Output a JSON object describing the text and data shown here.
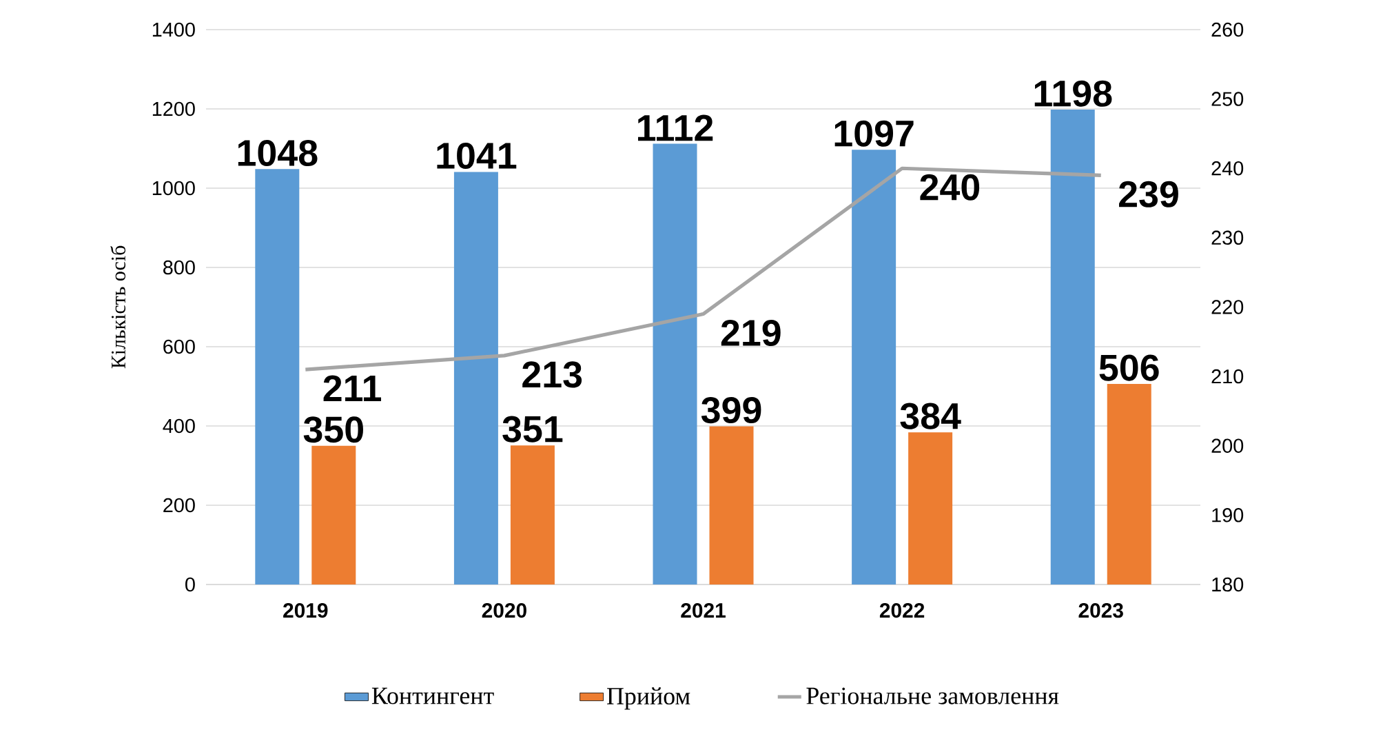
{
  "chart_data": {
    "type": "bar",
    "ylabel": "Кількість осіб",
    "categories": [
      "2019",
      "2020",
      "2021",
      "2022",
      "2023"
    ],
    "series": [
      {
        "name": "Контингент",
        "color": "#5b9bd5",
        "values": [
          1048,
          1041,
          1112,
          1097,
          1198
        ]
      },
      {
        "name": "Прийом",
        "color": "#ed7d31",
        "values": [
          350,
          351,
          399,
          384,
          506
        ]
      },
      {
        "name": "Регіональне замовлення",
        "type": "line",
        "axis": "y2",
        "color": "#a5a5a5",
        "values": [
          211,
          213,
          219,
          240,
          239
        ]
      }
    ],
    "ylim": [
      0,
      1400
    ],
    "yticks": [
      0,
      200,
      400,
      600,
      800,
      1000,
      1200,
      1400
    ],
    "y2lim": [
      180,
      260
    ],
    "y2ticks": [
      180,
      190,
      200,
      210,
      220,
      230,
      240,
      250,
      260
    ],
    "grid": "y",
    "legend": "bottom",
    "data_labels": true
  }
}
